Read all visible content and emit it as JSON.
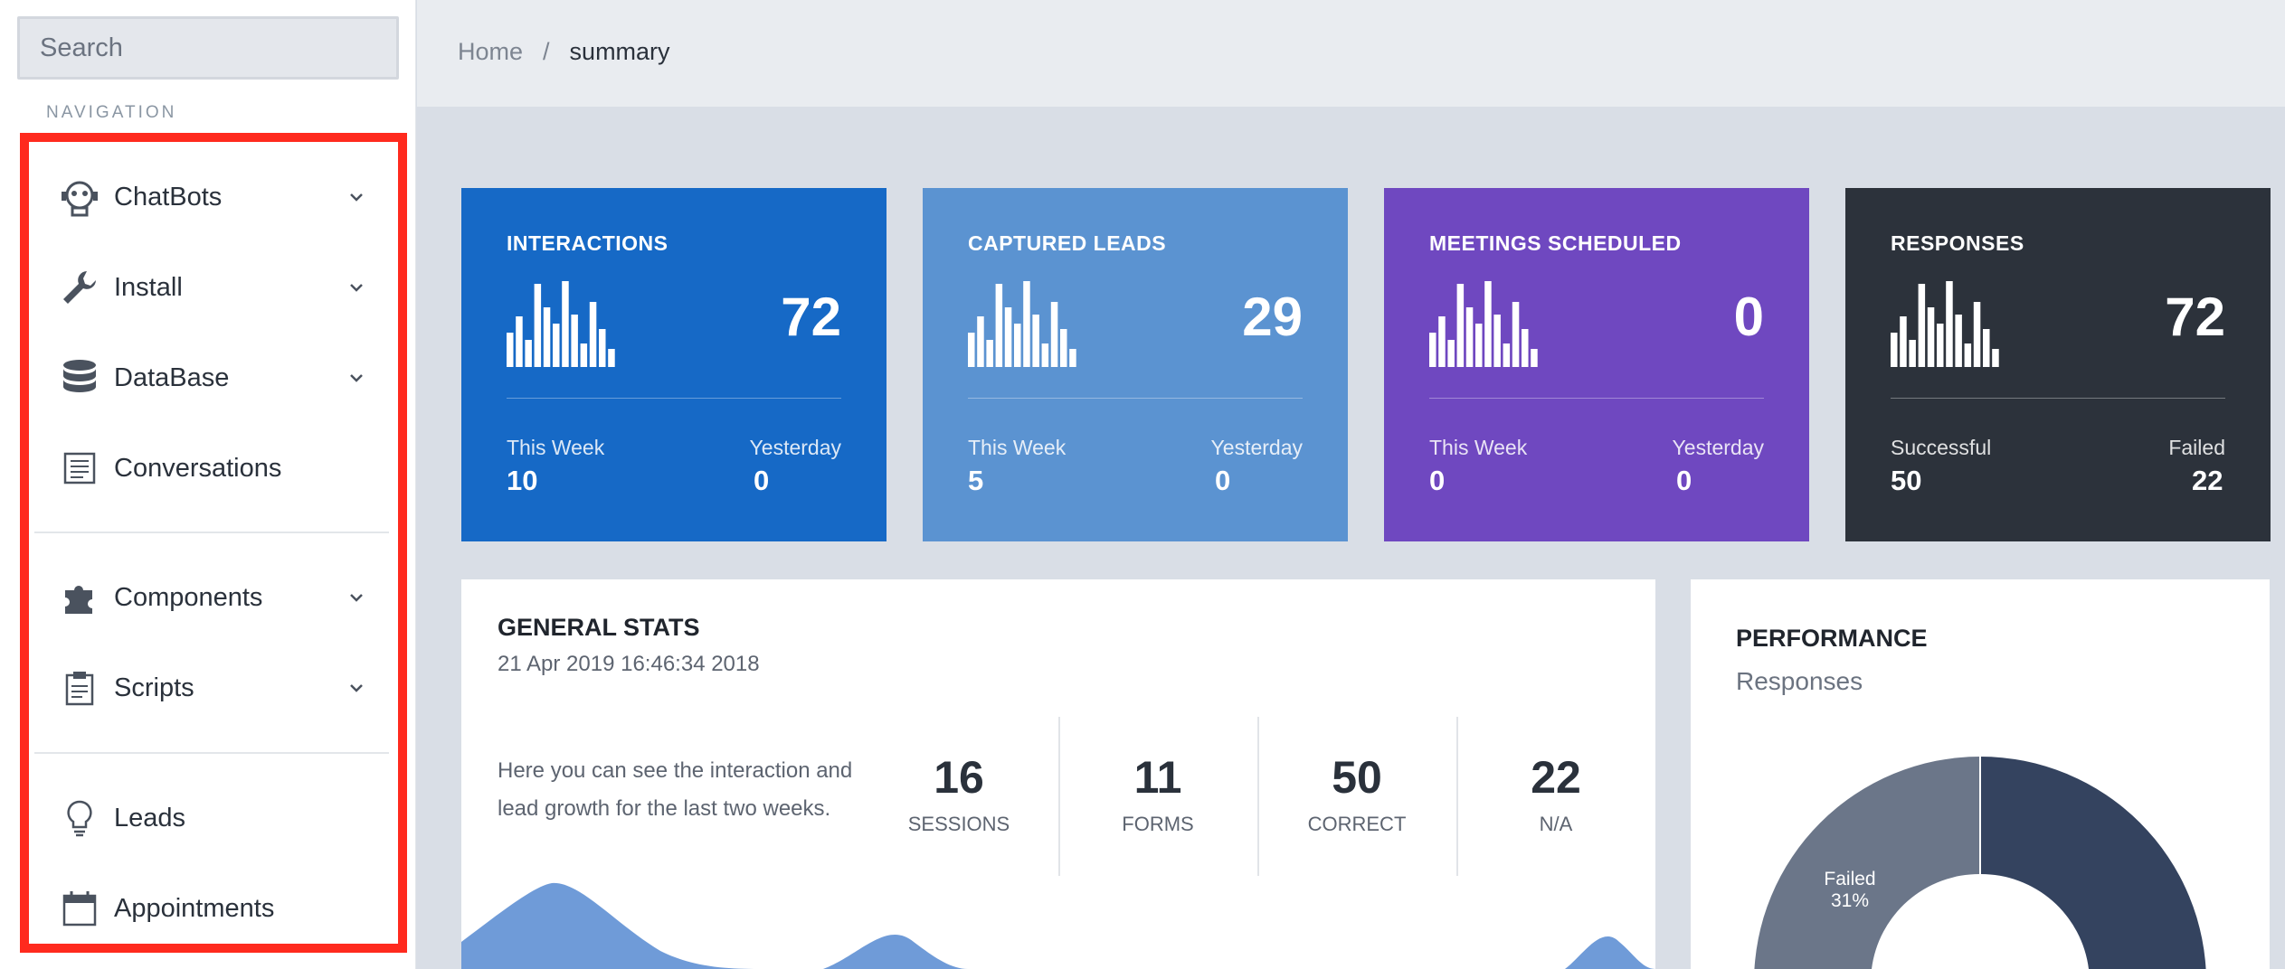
{
  "sidebar": {
    "search_placeholder": "Search",
    "nav_heading": "NAVIGATION",
    "items": [
      {
        "label": "ChatBots",
        "icon": "robot-icon",
        "has_chevron": true
      },
      {
        "label": "Install",
        "icon": "wrench-icon",
        "has_chevron": true
      },
      {
        "label": "DataBase",
        "icon": "database-icon",
        "has_chevron": true
      },
      {
        "label": "Conversations",
        "icon": "document-icon",
        "has_chevron": false
      },
      {
        "label": "Components",
        "icon": "puzzle-icon",
        "has_chevron": true
      },
      {
        "label": "Scripts",
        "icon": "clipboard-icon",
        "has_chevron": true
      },
      {
        "label": "Leads",
        "icon": "lightbulb-icon",
        "has_chevron": false
      },
      {
        "label": "Appointments",
        "icon": "calendar-icon",
        "has_chevron": false
      }
    ],
    "highlight_color": "#ff2a1e"
  },
  "breadcrumb": {
    "home": "Home",
    "separator": "/",
    "current": "summary"
  },
  "cards": [
    {
      "title": "INTERACTIONS",
      "value": "72",
      "left_label": "This Week",
      "left_value": "10",
      "right_label": "Yesterday",
      "right_value": "0",
      "color": "#1669c6"
    },
    {
      "title": "CAPTURED LEADS",
      "value": "29",
      "left_label": "This Week",
      "left_value": "5",
      "right_label": "Yesterday",
      "right_value": "0",
      "color": "#5b93d1"
    },
    {
      "title": "MEETINGS SCHEDULED",
      "value": "0",
      "left_label": "This Week",
      "left_value": "0",
      "right_label": "Yesterday",
      "right_value": "0",
      "color": "#6f48c0"
    },
    {
      "title": "RESPONSES",
      "value": "72",
      "left_label": "Successful",
      "left_value": "50",
      "right_label": "Failed",
      "right_value": "22",
      "color": "#2c323b"
    }
  ],
  "general_stats": {
    "title": "GENERAL STATS",
    "date": "21 Apr 2019 16:46:34 2018",
    "description": "Here you can see the interaction and lead growth for the last two weeks.",
    "stats": [
      {
        "value": "16",
        "label": "SESSIONS"
      },
      {
        "value": "11",
        "label": "FORMS"
      },
      {
        "value": "50",
        "label": "CORRECT"
      },
      {
        "value": "22",
        "label": "N/A"
      }
    ]
  },
  "performance": {
    "title": "PERFORMANCE",
    "subtitle": "Responses",
    "failed_label": "Failed",
    "failed_percent": "31%",
    "colors": {
      "failed": "#6b7689",
      "success": "#34435f"
    }
  }
}
